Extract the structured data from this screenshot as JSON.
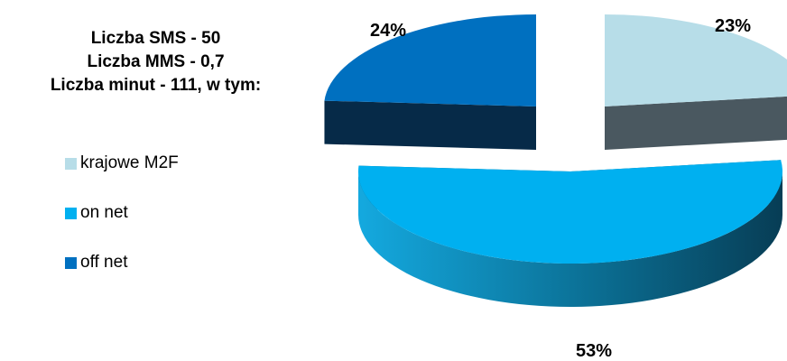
{
  "title_lines": [
    "Liczba SMS - 50",
    "Liczba MMS - 0,7",
    "Liczba minut - 111, w tym:"
  ],
  "chart_data": {
    "type": "pie",
    "style": "3d-exploded",
    "legend_position": "left",
    "series": [
      {
        "name": "krajowe M2F",
        "value": 23,
        "label": "23%",
        "color": "#b7dde8",
        "side_color": "#4a5860"
      },
      {
        "name": "on net",
        "value": 53,
        "label": "53%",
        "color": "#00b0f0",
        "side_color": "#0c5a78"
      },
      {
        "name": "off net",
        "value": 24,
        "label": "24%",
        "color": "#0070c0",
        "side_color": "#062a48"
      }
    ]
  }
}
